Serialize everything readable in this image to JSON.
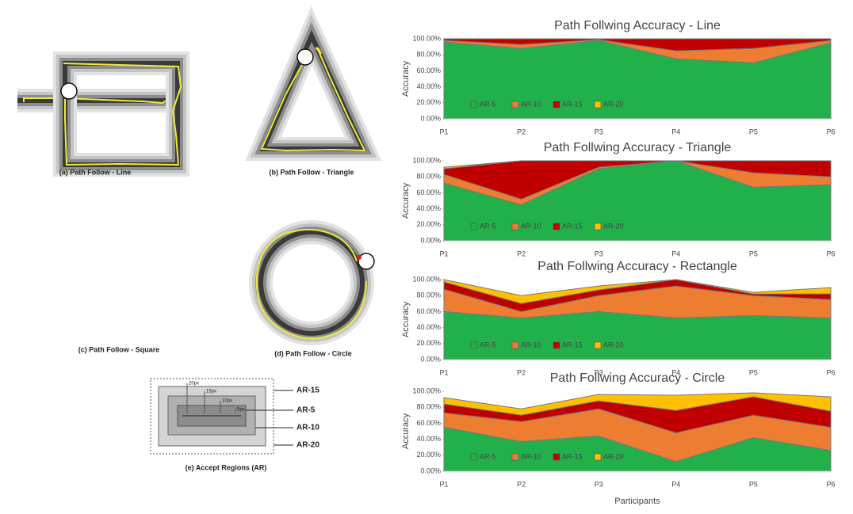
{
  "chart_data": [
    {
      "type": "area",
      "title": "Path Follwing Accuracy - Line",
      "y_label": "Accuracy",
      "categories": [
        "P1",
        "P2",
        "P3",
        "P4",
        "P5",
        "P6"
      ],
      "series": [
        {
          "name": "AR-5",
          "color": "#22b04b",
          "values": [
            96,
            88,
            98,
            75,
            70,
            95
          ]
        },
        {
          "name": "AR-10",
          "color": "#ed7d31",
          "values": [
            2,
            5,
            1,
            10,
            18,
            3
          ]
        },
        {
          "name": "AR-15",
          "color": "#c00000",
          "values": [
            2,
            7,
            1,
            15,
            12,
            2
          ]
        },
        {
          "name": "AR-20",
          "color": "#ffc000",
          "values": [
            0,
            0,
            0,
            0,
            0,
            0
          ]
        }
      ],
      "ylim": [
        0,
        100
      ],
      "yticks": [
        {
          "value": 0,
          "label": "0.00%"
        },
        {
          "value": 20,
          "label": "20.00%"
        },
        {
          "value": 40,
          "label": "40.00%"
        },
        {
          "value": 60,
          "label": "60.00%"
        },
        {
          "value": 80,
          "label": "80.00%"
        },
        {
          "value": 100,
          "label": "100.00%"
        }
      ]
    },
    {
      "type": "area",
      "title": "Path Follwing Accuracy - Triangle",
      "y_label": "Accuracy",
      "categories": [
        "P1",
        "P2",
        "P3",
        "P4",
        "P5",
        "P6"
      ],
      "series": [
        {
          "name": "AR-5",
          "color": "#22b04b",
          "values": [
            72,
            45,
            90,
            100,
            67,
            70
          ]
        },
        {
          "name": "AR-10",
          "color": "#ed7d31",
          "values": [
            11,
            7,
            2,
            0,
            18,
            10
          ]
        },
        {
          "name": "AR-15",
          "color": "#c00000",
          "values": [
            7,
            48,
            8,
            0,
            15,
            20
          ]
        },
        {
          "name": "AR-20",
          "color": "#ffc000",
          "values": [
            2,
            0,
            0,
            0,
            0,
            0
          ]
        }
      ],
      "ylim": [
        0,
        100
      ],
      "yticks": [
        {
          "value": 0,
          "label": "0.00%"
        },
        {
          "value": 20,
          "label": "20.00%"
        },
        {
          "value": 40,
          "label": "40.00%"
        },
        {
          "value": 60,
          "label": "60.00%"
        },
        {
          "value": 80,
          "label": "80.00%"
        },
        {
          "value": 100,
          "label": "100.00%"
        }
      ]
    },
    {
      "type": "area",
      "title": "Path Follwing Accuracy - Rectangle",
      "y_label": "Accuracy",
      "categories": [
        "P1",
        "P2",
        "P3",
        "P4",
        "P5",
        "P6"
      ],
      "series": [
        {
          "name": "AR-5",
          "color": "#22b04b",
          "values": [
            60,
            52,
            60,
            52,
            55,
            52
          ]
        },
        {
          "name": "AR-10",
          "color": "#ed7d31",
          "values": [
            28,
            8,
            20,
            40,
            25,
            23
          ]
        },
        {
          "name": "AR-15",
          "color": "#c00000",
          "values": [
            9,
            10,
            7,
            8,
            2,
            7
          ]
        },
        {
          "name": "AR-20",
          "color": "#ffc000",
          "values": [
            3,
            10,
            5,
            0,
            2,
            8
          ]
        }
      ],
      "ylim": [
        0,
        100
      ],
      "yticks": [
        {
          "value": 0,
          "label": "0.00%"
        },
        {
          "value": 20,
          "label": "20.00%"
        },
        {
          "value": 40,
          "label": "40.00%"
        },
        {
          "value": 60,
          "label": "60.00%"
        },
        {
          "value": 80,
          "label": "80.00%"
        },
        {
          "value": 100,
          "label": "100.00%"
        }
      ]
    },
    {
      "type": "area",
      "title": "Path Follwing Accuracy - Circle",
      "y_label": "Accuracy",
      "x_label": "Participants",
      "categories": [
        "P1",
        "P2",
        "P3",
        "P4",
        "P5",
        "P6"
      ],
      "series": [
        {
          "name": "AR-5",
          "color": "#22b04b",
          "values": [
            55,
            37,
            44,
            12,
            42,
            26
          ]
        },
        {
          "name": "AR-10",
          "color": "#ed7d31",
          "values": [
            18,
            25,
            34,
            36,
            28,
            29
          ]
        },
        {
          "name": "AR-15",
          "color": "#c00000",
          "values": [
            11,
            8,
            10,
            28,
            23,
            20
          ]
        },
        {
          "name": "AR-20",
          "color": "#ffc000",
          "values": [
            8,
            8,
            8,
            19,
            5,
            18
          ]
        }
      ],
      "ylim": [
        0,
        100
      ],
      "yticks": [
        {
          "value": 0,
          "label": "0.00%"
        },
        {
          "value": 20,
          "label": "20.00%"
        },
        {
          "value": 40,
          "label": "40.00%"
        },
        {
          "value": 60,
          "label": "60.00%"
        },
        {
          "value": 80,
          "label": "80.00%"
        },
        {
          "value": 100,
          "label": "100.00%"
        }
      ]
    }
  ],
  "figures": [
    {
      "caption": "(a) Path Follow - Line"
    },
    {
      "caption": "(b) Path Follow - Triangle"
    },
    {
      "caption": "(c) Path Follow - Square"
    },
    {
      "caption": "(d) Path Follow - Circle"
    },
    {
      "caption": "(e) Accept Regions (AR)"
    }
  ],
  "accept_regions": {
    "labels": [
      "AR-15",
      "AR-5",
      "AR-10",
      "AR-20"
    ],
    "offsets": [
      "20px",
      "15px",
      "10px",
      "5px"
    ]
  }
}
